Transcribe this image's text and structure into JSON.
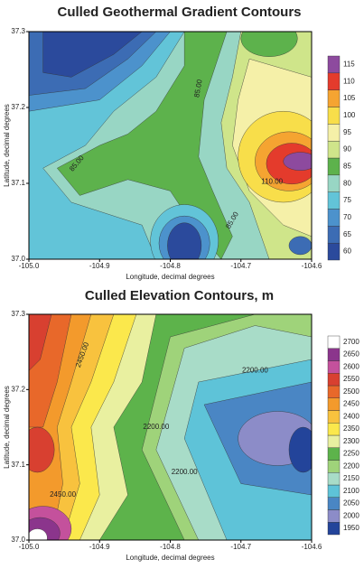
{
  "chart_data": [
    {
      "type": "contour",
      "title": "Culled Geothermal Gradient Contours",
      "xlabel": "Longitude, decimal degrees",
      "ylabel": "Latitude, decimal degrees",
      "xlim": [
        -105.0,
        -104.6
      ],
      "ylim": [
        37.0,
        37.3
      ],
      "xticks": [
        {
          "value": -105.0,
          "label": "-105.0"
        },
        -104.9,
        -104.8,
        -104.7,
        -104.6
      ],
      "yticks": [
        {
          "value": 37.0,
          "label": "37.0"
        },
        37.1,
        37.2,
        37.3
      ],
      "levels": [
        60,
        65,
        70,
        75,
        80,
        85,
        90,
        95,
        100,
        105,
        110,
        115
      ],
      "colors": [
        "#2b4a9c",
        "#3c6cb4",
        "#4c92cc",
        "#62c4d8",
        "#98d6c4",
        "#5db24c",
        "#cfe58a",
        "#f5f0a8",
        "#f8de4a",
        "#f5a431",
        "#e43b2c",
        "#8d4a9e"
      ],
      "annotations": [
        "85.00",
        "85.00",
        "110.00",
        "85.00"
      ]
    },
    {
      "type": "contour",
      "title": "Culled Elevation Contours, m",
      "xlabel": "Longitude, decimal degrees",
      "ylabel": "Latitude, decimal degrees",
      "xlim": [
        -105.0,
        -104.6
      ],
      "ylim": [
        37.0,
        37.3
      ],
      "xticks": [
        {
          "value": -105.0,
          "label": "-105.0"
        },
        -104.9,
        -104.8,
        -104.7,
        -104.6
      ],
      "yticks": [
        {
          "value": 37.0,
          "label": "37.0"
        },
        37.1,
        37.2,
        37.3
      ],
      "levels": [
        1950,
        2000,
        2050,
        2100,
        2150,
        2200,
        2250,
        2300,
        2350,
        2400,
        2450,
        2500,
        2550,
        2600,
        2650,
        2700
      ],
      "colors": [
        "#23449a",
        "#8c8cc8",
        "#4a86c4",
        "#5ec3d8",
        "#a8dcc8",
        "#9fd37a",
        "#5db34b",
        "#e9f0a0",
        "#fbe84c",
        "#f8c23e",
        "#f39a2c",
        "#e8682a",
        "#d84030",
        "#c4519c",
        "#8b358c",
        "#ffffff"
      ],
      "annotations": [
        "2450.00",
        "2200.00",
        "2200.00",
        "2200.00",
        "2450.00"
      ]
    }
  ]
}
